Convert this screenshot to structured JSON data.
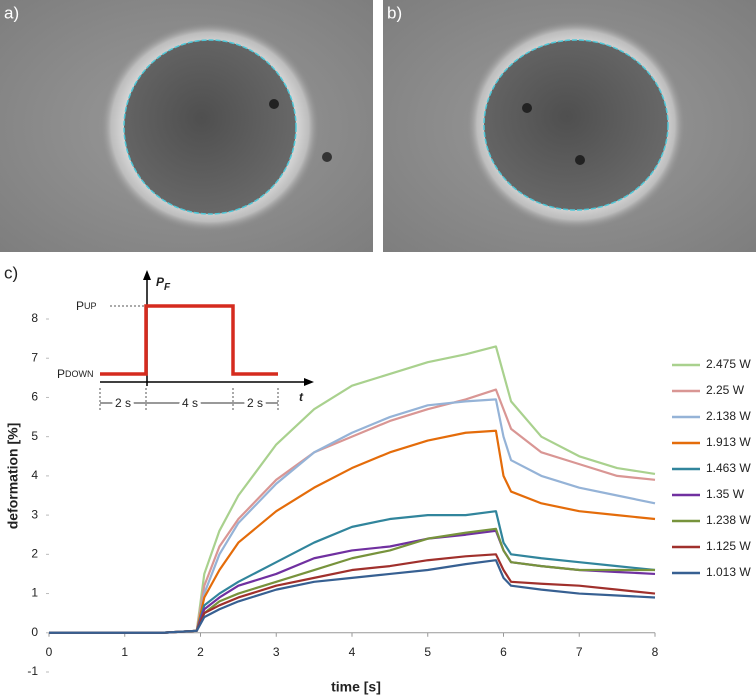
{
  "panels": {
    "a": "a)",
    "b": "b)",
    "c": "c)"
  },
  "inset": {
    "axis_label": "P",
    "axis_label_sub": "F",
    "up": "P",
    "up_sub": "UP",
    "down": "P",
    "down_sub": "DOWN",
    "durations": [
      "2 s",
      "4 s",
      "2 s"
    ],
    "time_label": "t"
  },
  "chart_data": {
    "type": "line",
    "xlabel": "time [s]",
    "ylabel": "deformation [%]",
    "xlim": [
      0,
      8
    ],
    "ylim": [
      -1,
      8
    ],
    "xticks": [
      0,
      1,
      2,
      3,
      4,
      5,
      6,
      7,
      8
    ],
    "yticks": [
      -1,
      0,
      1,
      2,
      3,
      4,
      5,
      6,
      7,
      8
    ],
    "x": [
      0,
      0.5,
      1,
      1.5,
      1.95,
      2.05,
      2.25,
      2.5,
      3,
      3.5,
      4,
      4.5,
      5,
      5.5,
      5.9,
      6.0,
      6.1,
      6.5,
      7,
      7.5,
      8
    ],
    "series": [
      {
        "name": "2.475 W",
        "color": "#a9d18e",
        "values": [
          0,
          0,
          0,
          0,
          0.05,
          1.5,
          2.6,
          3.5,
          4.8,
          5.7,
          6.3,
          6.6,
          6.9,
          7.1,
          7.3,
          6.6,
          5.9,
          5.0,
          4.5,
          4.2,
          4.05
        ]
      },
      {
        "name": "2.25 W",
        "color": "#d99694",
        "values": [
          0,
          0,
          0,
          0,
          0.05,
          1.2,
          2.2,
          2.9,
          3.9,
          4.6,
          5.0,
          5.4,
          5.7,
          5.95,
          6.2,
          5.7,
          5.2,
          4.6,
          4.3,
          4.0,
          3.9
        ]
      },
      {
        "name": "2.138 W",
        "color": "#95b3d7",
        "values": [
          0,
          0,
          0,
          0,
          0.05,
          1.0,
          2.0,
          2.8,
          3.8,
          4.6,
          5.1,
          5.5,
          5.8,
          5.9,
          5.95,
          5.0,
          4.4,
          4.0,
          3.7,
          3.5,
          3.3
        ]
      },
      {
        "name": "1.913 W",
        "color": "#e46c0a",
        "values": [
          0,
          0,
          0,
          0,
          0.05,
          0.9,
          1.6,
          2.3,
          3.1,
          3.7,
          4.2,
          4.6,
          4.9,
          5.1,
          5.15,
          4.0,
          3.6,
          3.3,
          3.1,
          3.0,
          2.9
        ]
      },
      {
        "name": "1.463 W",
        "color": "#31859c",
        "values": [
          0,
          0,
          0,
          0,
          0.05,
          0.7,
          1.0,
          1.3,
          1.8,
          2.3,
          2.7,
          2.9,
          3.0,
          3.0,
          3.1,
          2.3,
          2.0,
          1.9,
          1.8,
          1.7,
          1.6
        ]
      },
      {
        "name": "1.35 W",
        "color": "#7030a0",
        "values": [
          0,
          0,
          0,
          0,
          0.05,
          0.6,
          0.9,
          1.2,
          1.5,
          1.9,
          2.1,
          2.2,
          2.4,
          2.5,
          2.6,
          2.1,
          1.8,
          1.7,
          1.6,
          1.55,
          1.5
        ]
      },
      {
        "name": "1.238 W",
        "color": "#77933c",
        "values": [
          0,
          0,
          0,
          0,
          0.05,
          0.5,
          0.8,
          1.0,
          1.3,
          1.6,
          1.9,
          2.1,
          2.4,
          2.55,
          2.65,
          2.1,
          1.8,
          1.7,
          1.6,
          1.6,
          1.6
        ]
      },
      {
        "name": "1.125 W",
        "color": "#a0302c",
        "values": [
          0,
          0,
          0,
          0,
          0.05,
          0.5,
          0.7,
          0.9,
          1.2,
          1.4,
          1.6,
          1.7,
          1.85,
          1.95,
          2.0,
          1.6,
          1.3,
          1.25,
          1.2,
          1.1,
          1.0
        ]
      },
      {
        "name": "1.013 W",
        "color": "#376092",
        "values": [
          0,
          0,
          0,
          0,
          0.05,
          0.4,
          0.6,
          0.8,
          1.1,
          1.3,
          1.4,
          1.5,
          1.6,
          1.75,
          1.85,
          1.4,
          1.2,
          1.1,
          1.0,
          0.95,
          0.9
        ]
      }
    ]
  }
}
